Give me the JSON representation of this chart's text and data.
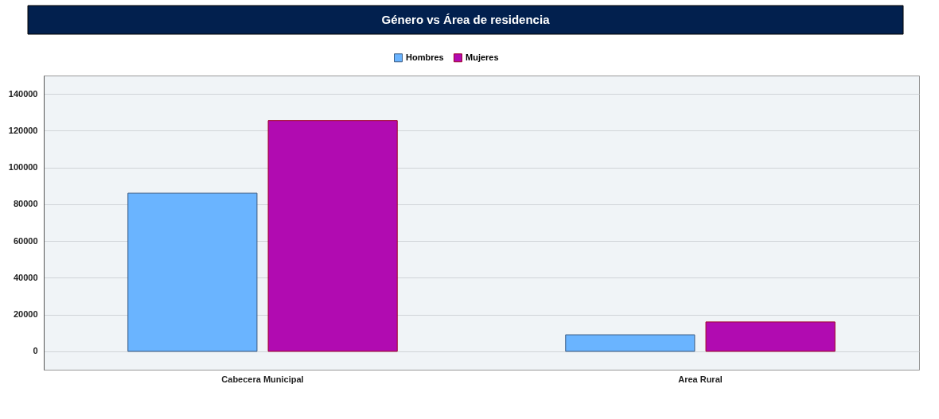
{
  "chart_data": {
    "type": "bar",
    "title": "Género vs Área de residencia",
    "categories": [
      "Cabecera Municipal",
      "Area Rural"
    ],
    "series": [
      {
        "name": "Hombres",
        "color": "#6ab4ff",
        "values": [
          86000,
          9000
        ]
      },
      {
        "name": "Mujeres",
        "color": "#b10bb1",
        "values": [
          125500,
          16000
        ]
      }
    ],
    "ylim": [
      -10000,
      150000
    ],
    "yticks": [
      0,
      20000,
      40000,
      60000,
      80000,
      100000,
      120000,
      140000
    ],
    "grid": "y",
    "legend": "top"
  }
}
